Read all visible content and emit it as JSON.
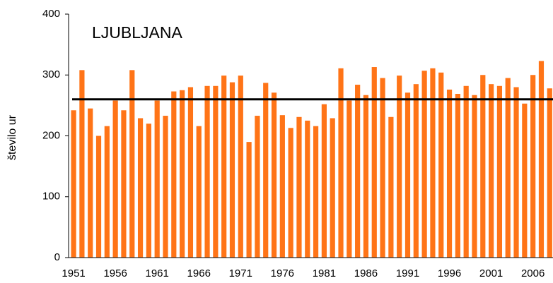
{
  "chart_data": {
    "type": "bar",
    "title": "LJUBLJANA",
    "y_label": "število ur",
    "categories": [
      "1951",
      null,
      null,
      null,
      null,
      "1956",
      null,
      null,
      null,
      null,
      "1961",
      null,
      null,
      null,
      null,
      "1966",
      null,
      null,
      null,
      null,
      "1971",
      null,
      null,
      null,
      null,
      "1976",
      null,
      null,
      null,
      null,
      "1981",
      null,
      null,
      null,
      null,
      "1986",
      null,
      null,
      null,
      null,
      "1991",
      null,
      null,
      null,
      null,
      "1996",
      null,
      null,
      null,
      null,
      "2001",
      null,
      null,
      null,
      null,
      "2006",
      null,
      null
    ],
    "values": [
      242,
      308,
      245,
      200,
      216,
      258,
      242,
      308,
      229,
      220,
      258,
      233,
      273,
      275,
      280,
      216,
      282,
      282,
      299,
      288,
      299,
      190,
      233,
      287,
      271,
      234,
      213,
      231,
      225,
      216,
      252,
      229,
      311,
      258,
      284,
      267,
      313,
      295,
      231,
      299,
      271,
      285,
      307,
      311,
      304,
      276,
      269,
      282,
      267,
      300,
      285,
      282,
      295,
      280,
      253,
      300,
      323,
      278
    ],
    "color": "#ff7417",
    "mean_line": 260,
    "mean_color": "#000000",
    "ylim": [
      0,
      400
    ],
    "yticks": [
      0,
      100,
      200,
      300,
      400
    ]
  }
}
